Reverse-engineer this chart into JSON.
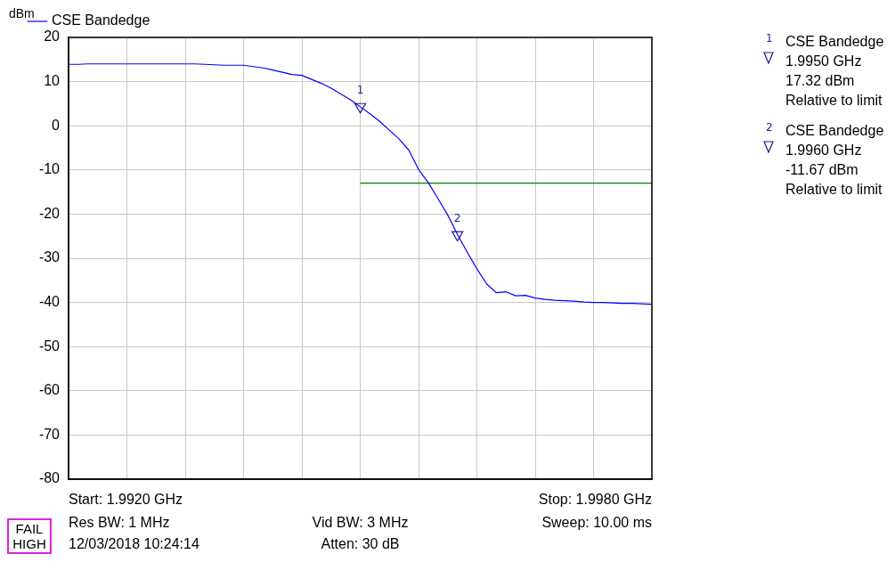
{
  "chart_data": {
    "type": "line",
    "ylabel": "dBm",
    "legend": "top left",
    "grid": true,
    "tick_labels": "y",
    "marker": "none",
    "line_style": "solid",
    "categories": [
      null,
      null,
      null,
      null,
      null,
      null,
      null,
      null,
      null,
      null,
      null,
      null,
      null,
      null,
      null,
      null,
      null,
      null,
      null,
      null,
      null,
      null,
      null,
      null,
      null,
      null,
      null,
      null,
      null,
      null,
      null,
      null,
      null,
      null,
      null,
      null,
      null,
      null,
      null,
      null,
      null,
      null,
      null,
      null,
      null,
      null,
      null,
      null,
      null,
      null,
      null,
      null,
      null,
      null,
      null,
      null,
      null,
      null,
      null,
      null,
      null
    ],
    "ylim": [
      -80,
      20
    ],
    "yticks": [
      -80,
      -70,
      -60,
      -50,
      -40,
      -30,
      -20,
      -10,
      0,
      10,
      20
    ],
    "series": [
      {
        "name": "CSE Bandedge",
        "color": "#0000ff",
        "values": [
          13.9,
          13.9,
          14.0,
          14.0,
          14.0,
          14.0,
          14.0,
          14.0,
          14.0,
          14.0,
          14.0,
          14.0,
          14.0,
          14.0,
          13.9,
          13.8,
          13.7,
          13.7,
          13.7,
          13.4,
          13.1,
          12.6,
          12.1,
          11.6,
          11.4,
          10.5,
          9.6,
          8.5,
          7.2,
          5.9,
          4.3,
          2.7,
          1.0,
          -1.0,
          -3.0,
          -5.5,
          -9.9,
          -12.9,
          -16.5,
          -20.2,
          -24.6,
          -28.6,
          -32.4,
          -35.8,
          -37.8,
          -37.6,
          -38.5,
          -38.4,
          -39.0,
          -39.3,
          -39.5,
          -39.6,
          -39.7,
          -39.9,
          -40.0,
          -40.0,
          -40.1,
          -40.2,
          -40.2,
          -40.3,
          -40.4
        ]
      },
      {
        "type": "line",
        "color": "#008000",
        "values": [
          null,
          null,
          null,
          null,
          null,
          null,
          null,
          null,
          null,
          null,
          null,
          null,
          null,
          null,
          null,
          null,
          null,
          null,
          null,
          null,
          null,
          null,
          null,
          null,
          null,
          null,
          null,
          null,
          null,
          null,
          -13,
          -13,
          -13,
          -13,
          -13,
          -13,
          -13,
          -13,
          -13,
          -13,
          -13,
          -13,
          -13,
          -13,
          -13,
          -13,
          -13,
          -13,
          -13,
          -13,
          -13,
          -13,
          -13,
          -13,
          -13,
          -13,
          -13,
          -13,
          -13,
          -13,
          -13
        ]
      },
      {
        "type": "scatter",
        "marker": "triangle",
        "color": "#1a1a8c",
        "values": [
          null,
          null,
          null,
          null,
          null,
          null,
          null,
          null,
          null,
          null,
          null,
          null,
          null,
          null,
          null,
          null,
          null,
          null,
          null,
          null,
          null,
          null,
          null,
          null,
          null,
          null,
          null,
          null,
          null,
          null,
          4.32,
          null,
          null,
          null,
          null,
          null,
          null,
          null,
          null,
          null,
          -24.67,
          null,
          null,
          null,
          null,
          null,
          null,
          null,
          null,
          null,
          null,
          null,
          null,
          null,
          null,
          null,
          null,
          null,
          null,
          null,
          null
        ]
      }
    ],
    "annotations": [
      "1",
      "2",
      "Start: 1.9920 GHz",
      "Stop: 1.9980 GHz",
      "Res BW: 1 MHz",
      "Vid BW: 3 MHz",
      "Sweep: 10.00 ms",
      "12/03/2018 10:24:14",
      "Atten: 30 dB",
      "FAIL HIGH",
      "1",
      "CSE Bandedge",
      "1.9950 GHz",
      "17.32 dBm",
      "Relative to limit",
      "2",
      "CSE Bandedge",
      "1.9960 GHz",
      "-11.67 dBm",
      "Relative to limit"
    ]
  }
}
